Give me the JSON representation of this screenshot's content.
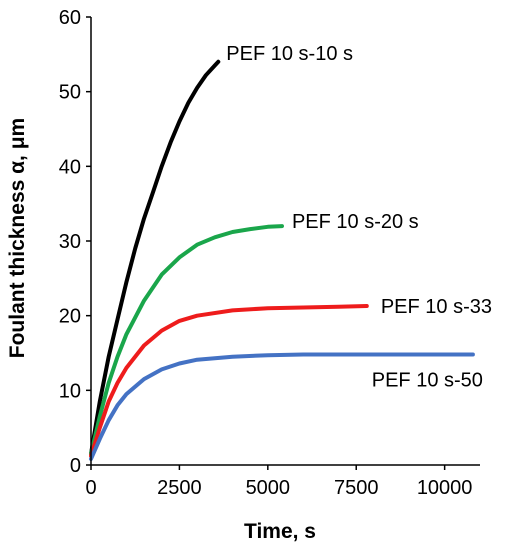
{
  "chart_data": {
    "type": "line",
    "title": "",
    "xlabel": "Time, s",
    "ylabel": "Foulant thickness α, μm",
    "xlim": [
      0,
      11000
    ],
    "ylim": [
      0,
      60
    ],
    "x_ticks": [
      0,
      2500,
      5000,
      7500,
      10000
    ],
    "y_ticks": [
      0,
      10,
      20,
      30,
      40,
      50,
      60
    ],
    "x_tick_labels": [
      "0",
      "2500",
      "5000",
      "7500",
      "10000"
    ],
    "y_tick_labels": [
      "0",
      "10",
      "20",
      "30",
      "40",
      "50",
      "60"
    ],
    "grid": false,
    "legend": "none",
    "series": [
      {
        "name": "PEF 10 s-10 s",
        "color": "#000000",
        "x": [
          0,
          250,
          500,
          750,
          1000,
          1250,
          1500,
          1750,
          2000,
          2250,
          2500,
          2750,
          3000,
          3250,
          3500,
          3600
        ],
        "y": [
          1.5,
          8.5,
          14.5,
          19.5,
          24.5,
          29,
          33,
          36.5,
          40,
          43.2,
          46,
          48.5,
          50.5,
          52.2,
          53.5,
          54
        ]
      },
      {
        "name": "PEF 10 s-20 s",
        "color": "#1aa64b",
        "x": [
          0,
          250,
          500,
          750,
          1000,
          1500,
          2000,
          2500,
          3000,
          3500,
          4000,
          4500,
          5000,
          5400
        ],
        "y": [
          1.5,
          6.5,
          11,
          14.5,
          17.5,
          22,
          25.5,
          27.8,
          29.5,
          30.5,
          31.2,
          31.6,
          31.9,
          32
        ]
      },
      {
        "name": "PEF 10 s-33",
        "color": "#ee1c1c",
        "x": [
          0,
          250,
          500,
          750,
          1000,
          1500,
          2000,
          2500,
          3000,
          4000,
          5000,
          6000,
          7000,
          7800
        ],
        "y": [
          1.2,
          5,
          8.5,
          11,
          13,
          16,
          18,
          19.3,
          20,
          20.7,
          21,
          21.1,
          21.2,
          21.3
        ]
      },
      {
        "name": "PEF 10 s-50",
        "color": "#4472c4",
        "x": [
          0,
          250,
          500,
          750,
          1000,
          1500,
          2000,
          2500,
          3000,
          4000,
          5000,
          6000,
          8000,
          10000,
          10800
        ],
        "y": [
          0.8,
          3.5,
          6,
          8,
          9.5,
          11.5,
          12.8,
          13.6,
          14.1,
          14.5,
          14.7,
          14.8,
          14.8,
          14.8,
          14.8
        ]
      }
    ]
  }
}
